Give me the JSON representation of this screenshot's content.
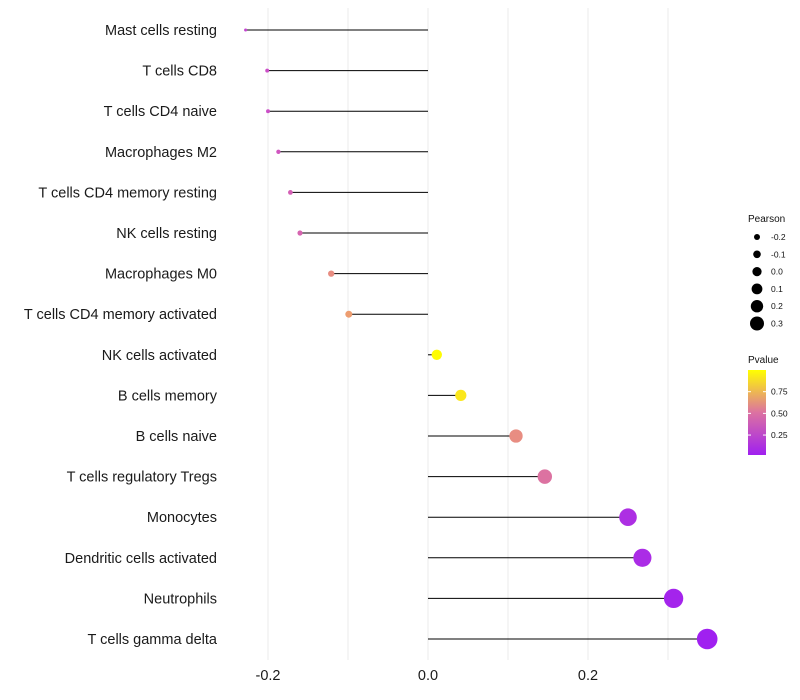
{
  "chart_data": {
    "type": "lollipop",
    "title": "",
    "xlabel": "",
    "ylabel": "",
    "xlim": [
      -0.3,
      0.36
    ],
    "x_ticks": [
      -0.2,
      0.0,
      0.2
    ],
    "x_tick_labels": [
      "-0.2",
      "0.0",
      "0.2"
    ],
    "categories": [
      "Mast cells resting",
      "T cells CD8",
      "T cells CD4 naive",
      "Macrophages M2",
      "T cells CD4 memory resting",
      "NK cells resting",
      "Macrophages M0",
      "T cells CD4 memory activated",
      "NK cells activated",
      "B cells memory",
      "B cells naive",
      "T cells regulatory  Tregs",
      "Monocytes",
      "Dendritic cells activated",
      "Neutrophils",
      "T cells gamma delta"
    ],
    "pearson": [
      -0.228,
      -0.201,
      -0.2,
      -0.187,
      -0.172,
      -0.16,
      -0.121,
      -0.099,
      0.011,
      0.041,
      0.11,
      0.146,
      0.25,
      0.268,
      0.307,
      0.349
    ],
    "pvalue": [
      0.28,
      0.34,
      0.34,
      0.38,
      0.42,
      0.44,
      0.62,
      0.68,
      0.99,
      0.92,
      0.62,
      0.5,
      0.12,
      0.1,
      0.05,
      0.02
    ],
    "legend": {
      "size_title": "Pearson",
      "size_labels": [
        "-0.2",
        "-0.1",
        "0.0",
        "0.1",
        "0.2",
        "0.3"
      ],
      "size_values": [
        -0.2,
        -0.1,
        0.0,
        0.1,
        0.2,
        0.3
      ],
      "color_title": "Pvalue",
      "color_labels": [
        "0.75",
        "0.50",
        "0.25"
      ],
      "color_values": [
        0.75,
        0.5,
        0.25
      ],
      "color_range": [
        0.02,
        1.0
      ],
      "color_low": "#a020f0",
      "color_high": "#ffff00",
      "placement": "right"
    },
    "grid": true,
    "stem_color": "#000000",
    "grid_color": "#ebebeb"
  }
}
